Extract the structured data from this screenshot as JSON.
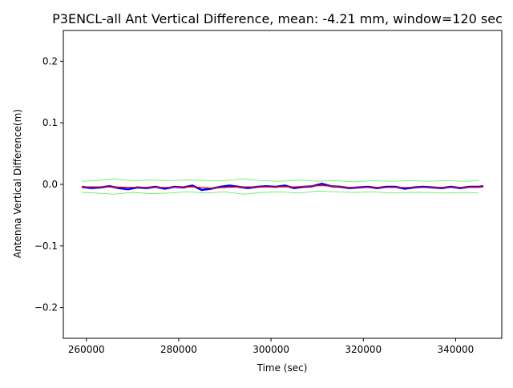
{
  "chart_data": {
    "type": "line",
    "title": "P3ENCL-all Ant Vertical Difference, mean: -4.21 mm, window=120 sec",
    "xlabel": "Time (sec)",
    "ylabel": "Antenna Vertical Difference(m)",
    "xlim": [
      255000,
      350000
    ],
    "ylim": [
      -0.25,
      0.25
    ],
    "xticks": [
      260000,
      280000,
      300000,
      320000,
      340000
    ],
    "xtick_labels": [
      "260000",
      "280000",
      "300000",
      "320000",
      "340000"
    ],
    "yticks": [
      -0.2,
      -0.1,
      0.0,
      0.1,
      0.2
    ],
    "ytick_labels": [
      "−0.2",
      "−0.1",
      "0.0",
      "0.1",
      "0.2"
    ],
    "grid": false,
    "series": [
      {
        "color": "#0000ff",
        "style": "line",
        "x": [
          259000,
          261000,
          263000,
          265000,
          267000,
          269000,
          271000,
          273000,
          275000,
          277000,
          279000,
          281000,
          283000,
          285000,
          287000,
          289000,
          291000,
          293000,
          295000,
          297000,
          299000,
          301000,
          303000,
          305000,
          307000,
          309000,
          311000,
          313000,
          315000,
          317000,
          319000,
          321000,
          323000,
          325000,
          327000,
          329000,
          331000,
          333000,
          335000,
          337000,
          339000,
          341000,
          343000,
          345000,
          346000
        ],
        "y": [
          -0.004,
          -0.006,
          -0.005,
          -0.003,
          -0.006,
          -0.008,
          -0.005,
          -0.006,
          -0.004,
          -0.007,
          -0.004,
          -0.005,
          -0.002,
          -0.009,
          -0.007,
          -0.004,
          -0.002,
          -0.004,
          -0.006,
          -0.004,
          -0.003,
          -0.004,
          -0.002,
          -0.006,
          -0.004,
          -0.003,
          0.001,
          -0.003,
          -0.004,
          -0.006,
          -0.005,
          -0.004,
          -0.006,
          -0.004,
          -0.004,
          -0.007,
          -0.005,
          -0.004,
          -0.005,
          -0.006,
          -0.004,
          -0.006,
          -0.004,
          -0.004,
          -0.003
        ]
      },
      {
        "color": "#ff0000",
        "style": "line",
        "x": [
          259000,
          265000,
          271000,
          277000,
          283000,
          287000,
          293000,
          299000,
          305000,
          311000,
          317000,
          323000,
          329000,
          335000,
          341000,
          346000
        ],
        "y": [
          -0.004,
          -0.004,
          -0.005,
          -0.005,
          -0.004,
          -0.006,
          -0.004,
          -0.004,
          -0.004,
          -0.002,
          -0.005,
          -0.005,
          -0.005,
          -0.005,
          -0.005,
          -0.004
        ]
      },
      {
        "color": "#66ee66",
        "style": "line",
        "x": [
          259000,
          262000,
          266000,
          270000,
          274000,
          278000,
          282000,
          286000,
          290000,
          294000,
          298000,
          302000,
          306000,
          310000,
          314000,
          318000,
          322000,
          326000,
          330000,
          334000,
          338000,
          342000,
          345000
        ],
        "y": [
          0.005,
          0.006,
          0.009,
          0.006,
          0.007,
          0.006,
          0.007,
          0.006,
          0.006,
          0.009,
          0.006,
          0.005,
          0.007,
          0.005,
          0.006,
          0.004,
          0.006,
          0.005,
          0.006,
          0.005,
          0.006,
          0.005,
          0.006
        ]
      },
      {
        "color": "#66ee66",
        "style": "line",
        "x": [
          259000,
          262000,
          266000,
          270000,
          274000,
          278000,
          282000,
          286000,
          290000,
          294000,
          298000,
          302000,
          306000,
          310000,
          314000,
          318000,
          322000,
          326000,
          330000,
          334000,
          338000,
          342000,
          345000
        ],
        "y": [
          -0.013,
          -0.014,
          -0.016,
          -0.013,
          -0.015,
          -0.014,
          -0.012,
          -0.014,
          -0.012,
          -0.016,
          -0.013,
          -0.012,
          -0.014,
          -0.011,
          -0.012,
          -0.013,
          -0.012,
          -0.014,
          -0.013,
          -0.013,
          -0.014,
          -0.013,
          -0.014
        ]
      }
    ]
  }
}
